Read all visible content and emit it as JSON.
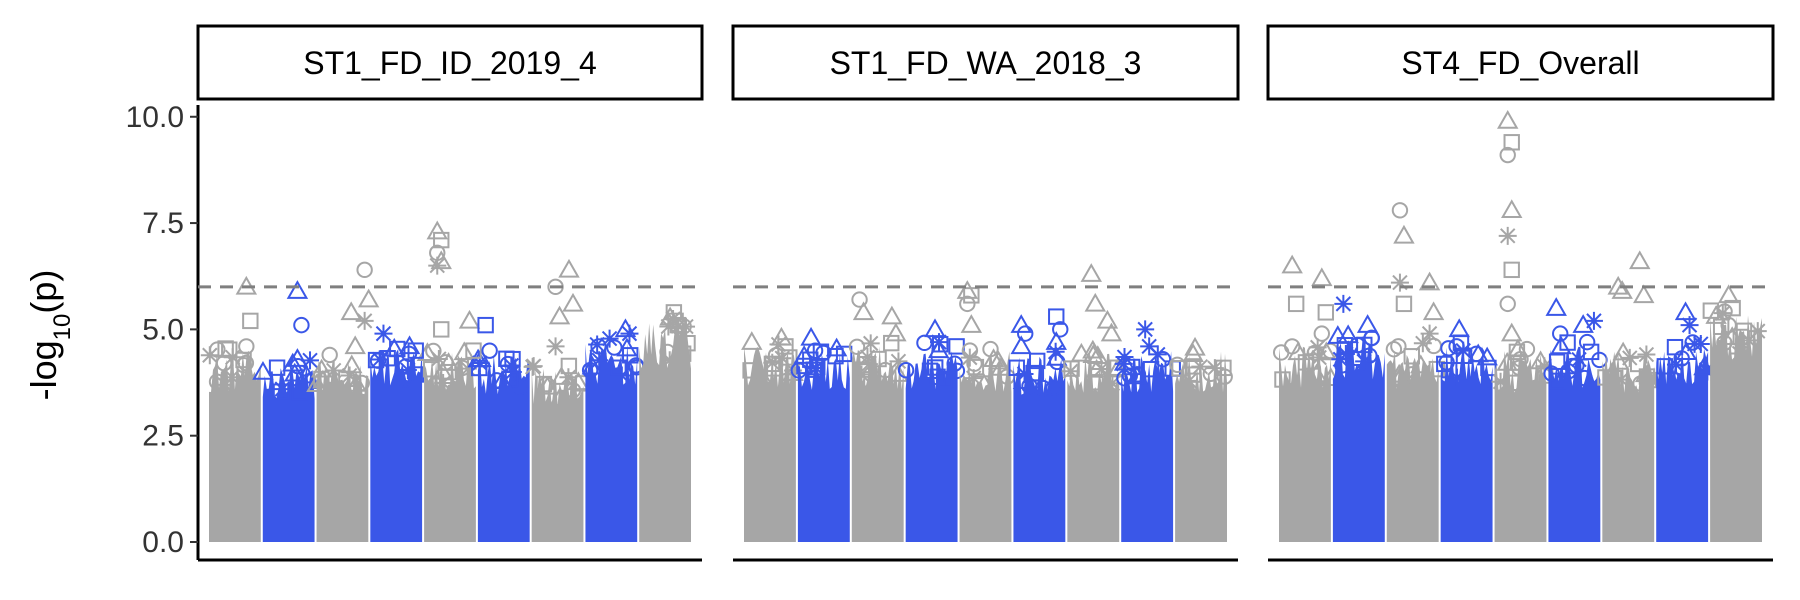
{
  "chart_data": {
    "type": "scatter",
    "subtype": "manhattan",
    "ylabel": "-log10(p)",
    "ylabel_parts": {
      "base": "-log",
      "sub": "10",
      "rest": "(p)"
    },
    "ylim": [
      0,
      10.3
    ],
    "yticks": [
      "0.0",
      "2.5",
      "5.0",
      "7.5",
      "10.0"
    ],
    "yticks_values": [
      0,
      2.5,
      5,
      7.5,
      10
    ],
    "threshold": 6,
    "grid": false,
    "legend": "none",
    "colors": {
      "odd_chrom": "#a6a6a6",
      "even_chrom": "#3a57e8",
      "threshold_line": "#7f7f7f",
      "strip_border": "#000000"
    },
    "chromosomes": 9,
    "panels": [
      {
        "title": "ST1_FD_ID_2019_4",
        "body_max": [
          4.5,
          4.2,
          4.3,
          4.6,
          4.5,
          4.4,
          4.1,
          4.7,
          5.2
        ],
        "peaks": [
          {
            "chrom": 1,
            "pos": 0.75,
            "values": [
              6.0,
              5.2,
              4.6
            ],
            "shape": "triangle"
          },
          {
            "chrom": 2,
            "pos": 0.7,
            "values": [
              5.9,
              5.1,
              4.3
            ],
            "shape": "triangle"
          },
          {
            "chrom": 3,
            "pos": 0.3,
            "values": [
              4.4
            ],
            "shape": "circle"
          },
          {
            "chrom": 3,
            "pos": 0.7,
            "values": [
              5.4,
              4.6
            ],
            "shape": "triangle"
          },
          {
            "chrom": 3,
            "pos": 0.95,
            "values": [
              6.4,
              5.7,
              5.2
            ],
            "shape": "circle"
          },
          {
            "chrom": 4,
            "pos": 0.3,
            "values": [
              4.9
            ],
            "shape": "asterisk"
          },
          {
            "chrom": 4,
            "pos": 0.9,
            "values": [
              4.5
            ],
            "shape": "square"
          },
          {
            "chrom": 5,
            "pos": 0.3,
            "values": [
              7.3,
              7.1,
              6.8,
              6.6,
              6.5,
              5.0
            ],
            "shape": "triangle"
          },
          {
            "chrom": 5,
            "pos": 0.9,
            "values": [
              5.2,
              4.5
            ],
            "shape": "triangle"
          },
          {
            "chrom": 6,
            "pos": 0.2,
            "values": [
              5.1,
              4.5
            ],
            "shape": "square"
          },
          {
            "chrom": 6,
            "pos": 0.7,
            "values": [
              4.3
            ],
            "shape": "square"
          },
          {
            "chrom": 7,
            "pos": 0.5,
            "values": [
              6.0,
              5.3,
              4.6
            ],
            "shape": "circle"
          },
          {
            "chrom": 7,
            "pos": 0.75,
            "values": [
              6.4,
              5.6
            ],
            "shape": "triangle"
          },
          {
            "chrom": 8,
            "pos": 0.3,
            "values": [
              4.6
            ],
            "shape": "circle"
          },
          {
            "chrom": 8,
            "pos": 0.8,
            "values": [
              5.0,
              4.9
            ],
            "shape": "triangle"
          },
          {
            "chrom": 9,
            "pos": 0.7,
            "values": [
              5.4,
              5.1
            ],
            "shape": "square"
          }
        ]
      },
      {
        "title": "ST1_FD_WA_2018_3",
        "body_max": [
          4.6,
          4.5,
          4.6,
          4.6,
          4.5,
          4.4,
          4.5,
          4.5,
          4.5
        ],
        "peaks": [
          {
            "chrom": 1,
            "pos": 0.2,
            "values": [
              4.7
            ],
            "shape": "triangle"
          },
          {
            "chrom": 1,
            "pos": 0.75,
            "values": [
              4.8,
              4.6
            ],
            "shape": "triangle"
          },
          {
            "chrom": 2,
            "pos": 0.3,
            "values": [
              4.8,
              4.5
            ],
            "shape": "triangle"
          },
          {
            "chrom": 3,
            "pos": 0.2,
            "values": [
              5.7,
              5.4
            ],
            "shape": "circle"
          },
          {
            "chrom": 3,
            "pos": 0.8,
            "values": [
              5.3,
              4.9
            ],
            "shape": "triangle"
          },
          {
            "chrom": 4,
            "pos": 0.6,
            "values": [
              5.0,
              4.7
            ],
            "shape": "triangle"
          },
          {
            "chrom": 5,
            "pos": 0.2,
            "values": [
              5.9,
              5.8,
              5.6,
              5.1
            ],
            "shape": "triangle"
          },
          {
            "chrom": 6,
            "pos": 0.2,
            "values": [
              5.1,
              4.9,
              4.6
            ],
            "shape": "triangle"
          },
          {
            "chrom": 6,
            "pos": 0.85,
            "values": [
              5.3,
              5.0,
              4.7
            ],
            "shape": "square"
          },
          {
            "chrom": 7,
            "pos": 0.5,
            "values": [
              6.3,
              5.6
            ],
            "shape": "triangle"
          },
          {
            "chrom": 7,
            "pos": 0.8,
            "values": [
              5.2,
              4.9
            ],
            "shape": "triangle"
          },
          {
            "chrom": 8,
            "pos": 0.5,
            "values": [
              5.0,
              4.6
            ],
            "shape": "asterisk"
          }
        ]
      },
      {
        "title": "ST4_FD_Overall",
        "body_max": [
          4.6,
          4.9,
          4.6,
          4.7,
          4.5,
          4.6,
          4.5,
          4.6,
          5.4
        ],
        "peaks": [
          {
            "chrom": 1,
            "pos": 0.3,
            "values": [
              6.5,
              5.6,
              4.6
            ],
            "shape": "triangle"
          },
          {
            "chrom": 1,
            "pos": 0.85,
            "values": [
              6.2,
              5.4,
              4.9
            ],
            "shape": "triangle"
          },
          {
            "chrom": 2,
            "pos": 0.25,
            "values": [
              5.6
            ],
            "shape": "asterisk"
          },
          {
            "chrom": 2,
            "pos": 0.7,
            "values": [
              5.1,
              4.8
            ],
            "shape": "triangle"
          },
          {
            "chrom": 3,
            "pos": 0.3,
            "values": [
              7.8,
              7.2,
              6.1,
              5.6
            ],
            "shape": "circle"
          },
          {
            "chrom": 3,
            "pos": 0.85,
            "values": [
              6.1,
              5.4,
              4.9
            ],
            "shape": "triangle"
          },
          {
            "chrom": 4,
            "pos": 0.4,
            "values": [
              5.0,
              4.5
            ],
            "shape": "triangle"
          },
          {
            "chrom": 5,
            "pos": 0.3,
            "values": [
              9.9,
              9.4,
              9.1,
              7.8,
              7.2,
              6.4,
              5.6,
              4.9
            ],
            "shape": "triangle"
          },
          {
            "chrom": 6,
            "pos": 0.2,
            "values": [
              5.5,
              4.9
            ],
            "shape": "triangle"
          },
          {
            "chrom": 6,
            "pos": 0.7,
            "values": [
              5.1,
              4.7
            ],
            "shape": "triangle"
          },
          {
            "chrom": 6,
            "pos": 0.9,
            "values": [
              5.2
            ],
            "shape": "asterisk"
          },
          {
            "chrom": 7,
            "pos": 0.35,
            "values": [
              6.0,
              5.9
            ],
            "shape": "triangle"
          },
          {
            "chrom": 7,
            "pos": 0.75,
            "values": [
              6.6,
              5.8
            ],
            "shape": "triangle"
          },
          {
            "chrom": 8,
            "pos": 0.6,
            "values": [
              5.4,
              5.1
            ],
            "shape": "triangle"
          },
          {
            "chrom": 9,
            "pos": 0.4,
            "values": [
              5.8,
              5.5,
              5.1
            ],
            "shape": "triangle"
          }
        ]
      }
    ]
  }
}
